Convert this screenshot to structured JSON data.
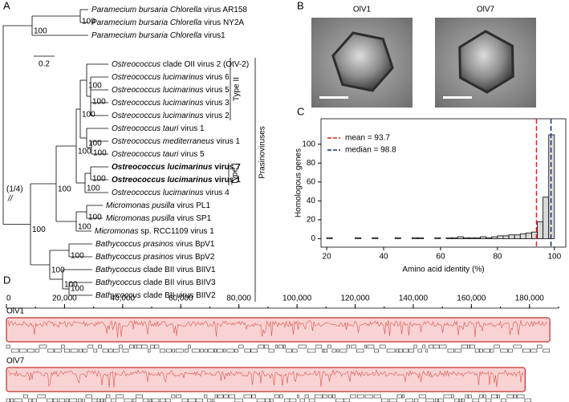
{
  "panel_labels": [
    "A",
    "B",
    "C",
    "D"
  ],
  "tree": {
    "scale_label": "0.2",
    "root_note": "(1/4)",
    "break_mark": "//",
    "leaves": [
      {
        "parts": [
          "Paramecium bursaria Chlorella",
          "virus AR158"
        ]
      },
      {
        "parts": [
          "Paramecium bursaria Chlorella",
          "virus NY2A"
        ]
      },
      {
        "parts": [
          "Paramecium bursaria Chlorella",
          "virus1"
        ]
      },
      {
        "parts": [
          "Ostreococcus",
          "clade OII virus 2 (OtV-2)"
        ]
      },
      {
        "parts": [
          "Ostreococcus lucimarinus",
          "virus 6"
        ]
      },
      {
        "parts": [
          "Ostreococcus lucimarinus",
          "virus 5"
        ]
      },
      {
        "parts": [
          "Ostreococcus lucimarinus",
          "virus 3"
        ]
      },
      {
        "parts": [
          "Ostreococcus lucimarinus",
          "virus 2"
        ]
      },
      {
        "parts": [
          "Ostreococcus tauri",
          "virus 1"
        ]
      },
      {
        "parts": [
          "Ostreococcus mediterraneus",
          "virus 1"
        ]
      },
      {
        "parts": [
          "Ostreococcus tauri",
          "virus 5"
        ]
      },
      {
        "parts": [
          "Ostreococcus lucimarinus",
          "virus 7"
        ],
        "bold": true
      },
      {
        "parts": [
          "Ostreococcus lucimarinus",
          "virus 1"
        ],
        "bold": true
      },
      {
        "parts": [
          "Ostreococcus lucimarinus",
          "virus 4"
        ]
      },
      {
        "parts": [
          "Micromonas pusilla",
          "virus PL1"
        ]
      },
      {
        "parts": [
          "Micromonas pusilla",
          "virus SP1"
        ]
      },
      {
        "parts": [
          "Micromonas",
          "sp. RCC1109 virus 1"
        ]
      },
      {
        "parts": [
          "Bathycoccus prasinos",
          "virus BpV1"
        ]
      },
      {
        "parts": [
          "Bathycoccus prasinos",
          "virus BpV2"
        ]
      },
      {
        "parts": [
          "Bathycoccus",
          "clade BII virus BIIV1"
        ]
      },
      {
        "parts": [
          "Bathycoccus",
          "clade BII virus BIIV3"
        ]
      },
      {
        "parts": [
          "Bathycoccus",
          "clade BII virus BIIV2"
        ]
      }
    ],
    "bootstraps": [
      100,
      100,
      100,
      100,
      100,
      100,
      100,
      100,
      100,
      100,
      100,
      100,
      100,
      100,
      100,
      100,
      100
    ],
    "groups": [
      "Type II",
      "Type I",
      "Prasinoviruses"
    ]
  },
  "micrographs": [
    "OlV1",
    "OlV7"
  ],
  "chart_data": {
    "type": "histogram",
    "x_label": "Amino acid identity (%)",
    "y_label": "Homologous genes",
    "bins": [
      20,
      22,
      24,
      26,
      28,
      30,
      32,
      34,
      36,
      38,
      40,
      42,
      44,
      46,
      48,
      50,
      52,
      54,
      56,
      58,
      60,
      62,
      64,
      66,
      68,
      70,
      72,
      74,
      76,
      78,
      80,
      82,
      84,
      86,
      88,
      90,
      92,
      94,
      96,
      98,
      100
    ],
    "values": [
      1,
      0,
      0,
      0,
      0,
      1,
      0,
      0,
      1,
      0,
      0,
      0,
      1,
      0,
      0,
      1,
      1,
      0,
      0,
      1,
      0,
      1,
      1,
      2,
      1,
      1,
      1,
      2,
      1,
      2,
      3,
      3,
      4,
      4,
      5,
      6,
      7,
      18,
      44,
      110
    ],
    "color": "#d9d9d9",
    "xlim": [
      18,
      104
    ],
    "ylim": [
      -9,
      127
    ],
    "xticks": [
      20,
      40,
      60,
      80,
      100
    ],
    "yticks": [
      0,
      20,
      40,
      60,
      80,
      100
    ],
    "lines": [
      {
        "name": "mean = 93.7",
        "value": 93.7,
        "color": "#e0201b"
      },
      {
        "name": "median = 98.8",
        "value": 98.8,
        "color": "#1b2a78"
      }
    ]
  },
  "genome": {
    "xlim": [
      0,
      190000
    ],
    "xticks": [
      {
        "value": 0,
        "label": "0"
      },
      {
        "value": 20000,
        "label": "20,000"
      },
      {
        "value": 40000,
        "label": "40,000"
      },
      {
        "value": 60000,
        "label": "60,000"
      },
      {
        "value": 80000,
        "label": "80,000"
      },
      {
        "value": 100000,
        "label": "100,000"
      },
      {
        "value": 120000,
        "label": "120,000"
      },
      {
        "value": 140000,
        "label": "140,000"
      },
      {
        "value": 160000,
        "label": "160,000"
      },
      {
        "value": 180000,
        "label": "180,000"
      }
    ],
    "tracks": [
      {
        "name": "OlV1",
        "length": 187000
      },
      {
        "name": "OlV7",
        "length": 178500
      }
    ]
  }
}
